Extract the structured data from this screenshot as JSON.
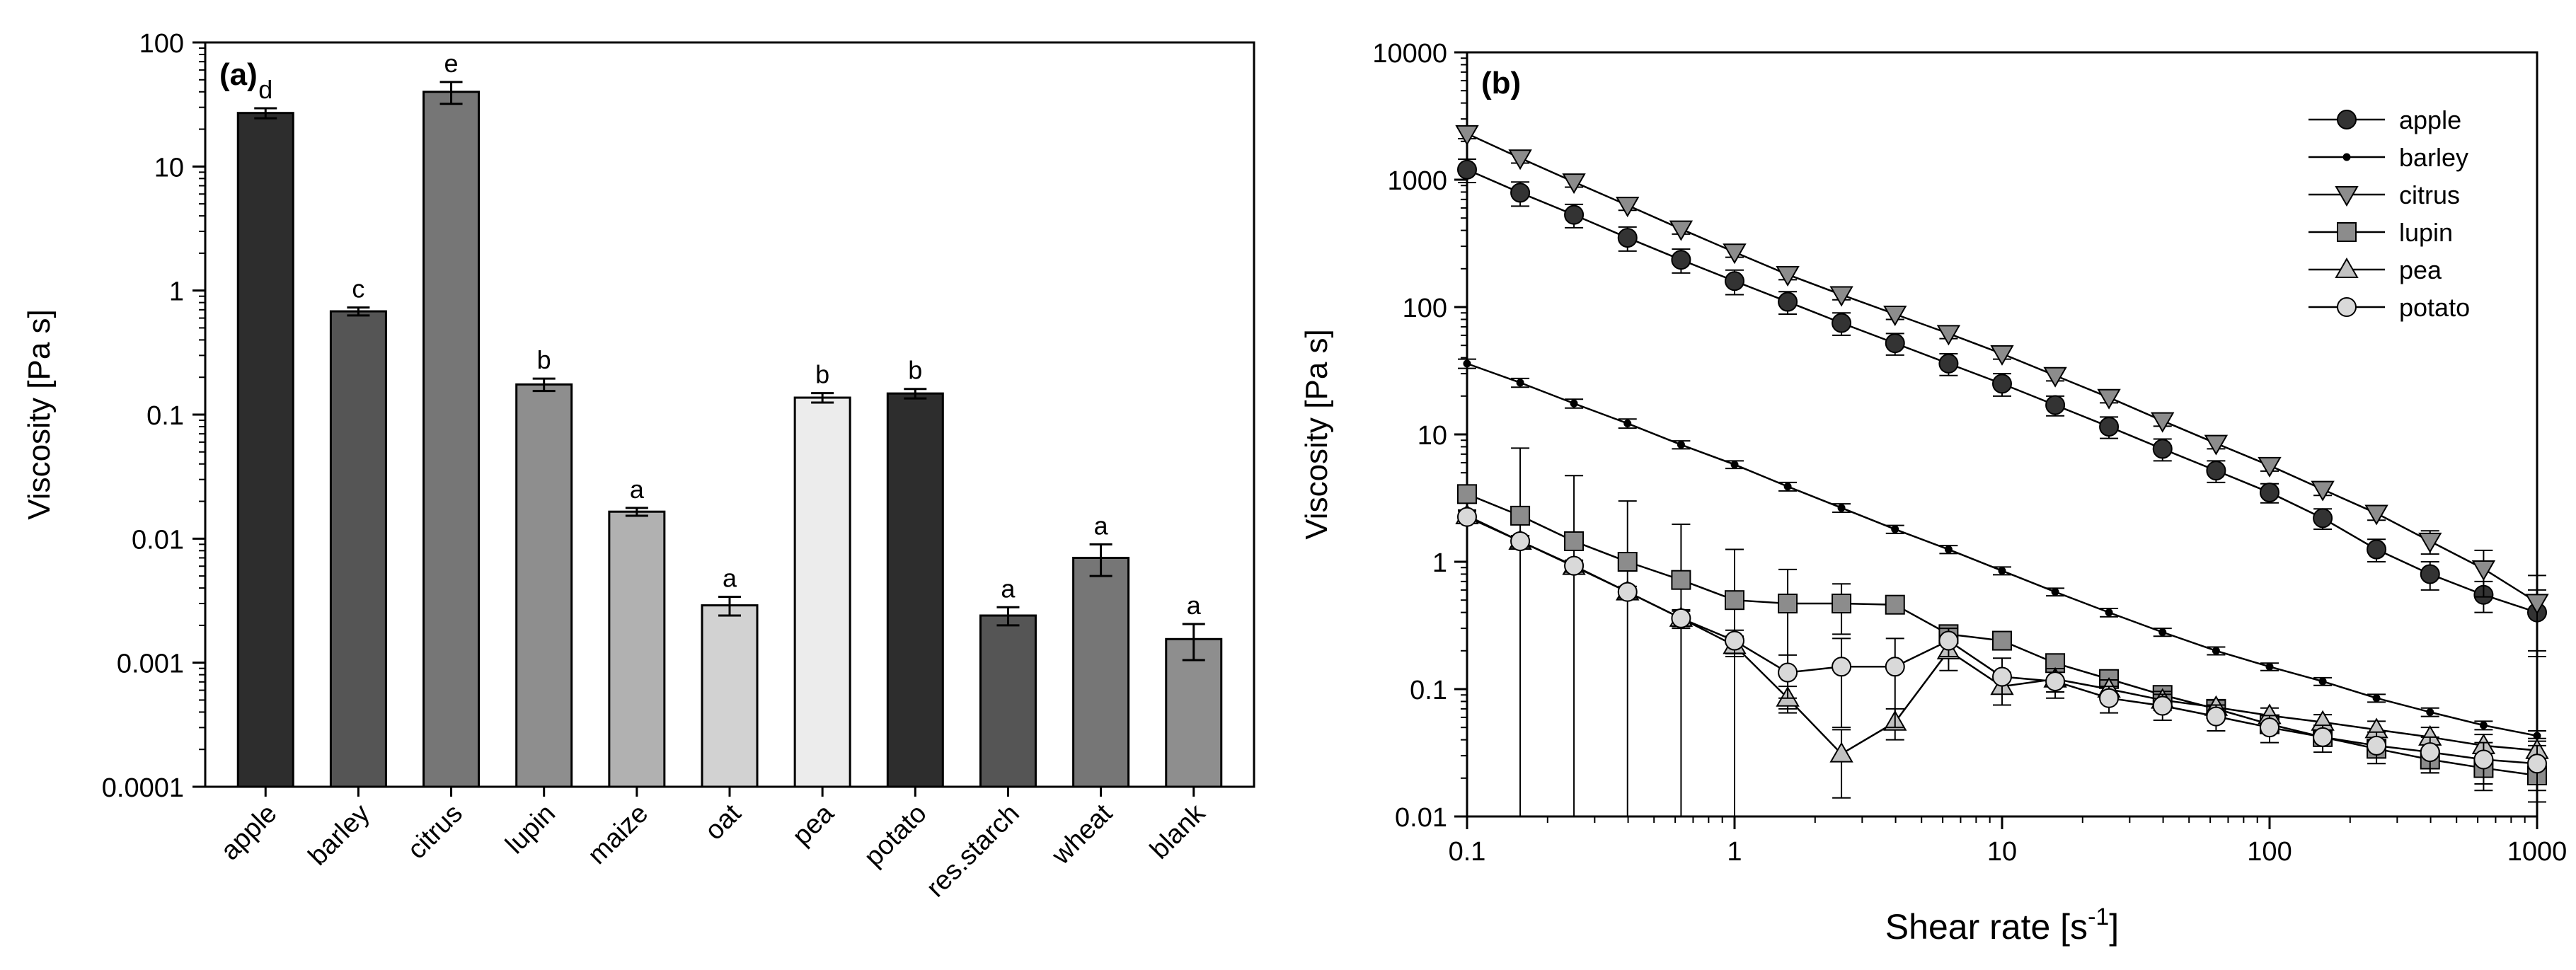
{
  "chart_data": [
    {
      "panel_label": "(a)",
      "type": "bar",
      "scale": "log",
      "ylabel": "Viscosity [Pa s]",
      "xlabel": "",
      "ylim": [
        0.0001,
        100
      ],
      "yticks": [
        "0.0001",
        "0.001",
        "0.01",
        "0.1",
        "1",
        "10",
        "100"
      ],
      "categories": [
        "apple",
        "barley",
        "citrus",
        "lupin",
        "maize",
        "oat",
        "pea",
        "potato",
        "res.starch",
        "wheat",
        "blank"
      ],
      "values": [
        27,
        0.68,
        40,
        0.175,
        0.0165,
        0.0029,
        0.137,
        0.148,
        0.0024,
        0.007,
        0.00155
      ],
      "error": [
        2.5,
        0.05,
        8,
        0.02,
        0.0012,
        0.0005,
        0.012,
        0.013,
        0.0004,
        0.002,
        0.0005
      ],
      "letters": [
        "d",
        "c",
        "e",
        "b",
        "a",
        "a",
        "b",
        "b",
        "a",
        "a",
        "a"
      ],
      "colors": [
        "#2d2d2d",
        "#555555",
        "#767676",
        "#8e8e8e",
        "#b1b1b1",
        "#d2d2d2",
        "#ececec",
        "#2d2d2d",
        "#555555",
        "#767676",
        "#8e8e8e"
      ]
    },
    {
      "panel_label": "(b)",
      "type": "line",
      "scale": "log-log",
      "xlabel": "Shear rate [s",
      "xlabel_sup": "-1",
      "xlabel_end": "]",
      "ylabel": "Viscosity [Pa  s]",
      "xlim": [
        0.1,
        1000
      ],
      "ylim": [
        0.01,
        10000
      ],
      "xticks": [
        "0.1",
        "1",
        "10",
        "100",
        "1000"
      ],
      "yticks": [
        "0.01",
        "0.1",
        "1",
        "10",
        "100",
        "1000",
        "10000"
      ],
      "x": [
        0.1,
        0.158,
        0.251,
        0.398,
        0.631,
        1,
        1.58,
        2.51,
        3.98,
        6.31,
        10,
        15.8,
        25.1,
        39.8,
        63.1,
        100,
        158,
        251,
        398,
        631,
        1000
      ],
      "legend_position": "top-right",
      "series": [
        {
          "name": "apple",
          "marker": "circle",
          "fill": "#333333",
          "values": [
            1200,
            790,
            530,
            350,
            235,
            160,
            110,
            75,
            52,
            36,
            25,
            17,
            11.5,
            7.7,
            5.2,
            3.5,
            2.2,
            1.25,
            0.8,
            0.55,
            0.4
          ],
          "error": [
            250,
            170,
            110,
            75,
            50,
            35,
            22,
            15,
            10,
            7,
            5,
            3,
            2.2,
            1.5,
            1.0,
            0.6,
            0.4,
            0.25,
            0.2,
            0.15,
            0.2
          ]
        },
        {
          "name": "barley",
          "marker": "dot",
          "fill": "#000000",
          "values": [
            36,
            25.5,
            17.5,
            12.2,
            8.3,
            5.8,
            3.9,
            2.65,
            1.8,
            1.25,
            0.85,
            0.58,
            0.4,
            0.28,
            0.2,
            0.15,
            0.115,
            0.085,
            0.066,
            0.052,
            0.043
          ],
          "error": [
            3,
            2,
            1.4,
            1,
            0.6,
            0.4,
            0.3,
            0.2,
            0.13,
            0.09,
            0.06,
            0.04,
            0.03,
            0.02,
            0.014,
            0.01,
            0.008,
            0.006,
            0.005,
            0.004,
            0.004
          ]
        },
        {
          "name": "citrus",
          "marker": "triangle-down",
          "fill": "#8c8c8c",
          "values": [
            2300,
            1480,
            960,
            630,
            410,
            270,
            180,
            125,
            88,
            62,
            43,
            29,
            19.5,
            12.8,
            8.5,
            5.7,
            3.7,
            2.4,
            1.45,
            0.88,
            0.48
          ],
          "error": [
            200,
            130,
            85,
            55,
            36,
            24,
            16,
            11,
            8,
            5.5,
            4,
            2.7,
            1.8,
            1.2,
            0.8,
            0.55,
            0.38,
            0.28,
            0.3,
            0.35,
            0.3
          ]
        },
        {
          "name": "lupin",
          "marker": "square",
          "fill": "#8c8c8c",
          "values": [
            3.4,
            2.3,
            1.45,
            1.0,
            0.72,
            0.5,
            0.47,
            0.47,
            0.46,
            0.27,
            0.24,
            0.16,
            0.12,
            0.09,
            0.07,
            0.053,
            0.042,
            0.034,
            0.028,
            0.024,
            0.021
          ],
          "error": [
            0.5,
            5.5,
            3.3,
            2.0,
            1.25,
            0.75,
            0.4,
            0.2,
            0.05,
            0.04,
            0.03,
            0.02,
            0.015,
            0.01,
            0.008,
            0.006,
            0.005,
            0.005,
            0.006,
            0.008,
            0.008
          ]
        },
        {
          "name": "pea",
          "marker": "triangle-up",
          "fill": "#c2c2c2",
          "values": [
            2.3,
            1.45,
            0.92,
            0.58,
            0.36,
            0.22,
            0.085,
            0.031,
            0.055,
            0.2,
            0.105,
            0.12,
            0.1,
            0.082,
            0.072,
            0.062,
            0.055,
            0.048,
            0.042,
            0.036,
            0.033
          ],
          "error": [
            0.25,
            0.15,
            0.1,
            0.06,
            0.05,
            0.04,
            0.02,
            0.017,
            0.015,
            0.06,
            0.03,
            0.025,
            0.018,
            0.014,
            0.01,
            0.009,
            0.008,
            0.008,
            0.008,
            0.008,
            0.008
          ]
        },
        {
          "name": "potato",
          "marker": "circle",
          "fill": "#d9d9d9",
          "values": [
            2.25,
            1.45,
            0.93,
            0.58,
            0.36,
            0.24,
            0.135,
            0.15,
            0.15,
            0.24,
            0.125,
            0.115,
            0.085,
            0.074,
            0.061,
            0.05,
            0.042,
            0.036,
            0.032,
            0.028,
            0.026
          ],
          "error": [
            0.25,
            0.15,
            0.1,
            0.06,
            0.06,
            0.05,
            0.05,
            0.1,
            0.1,
            0.06,
            0.05,
            0.03,
            0.02,
            0.017,
            0.014,
            0.012,
            0.01,
            0.01,
            0.01,
            0.01,
            0.01
          ]
        }
      ]
    }
  ]
}
